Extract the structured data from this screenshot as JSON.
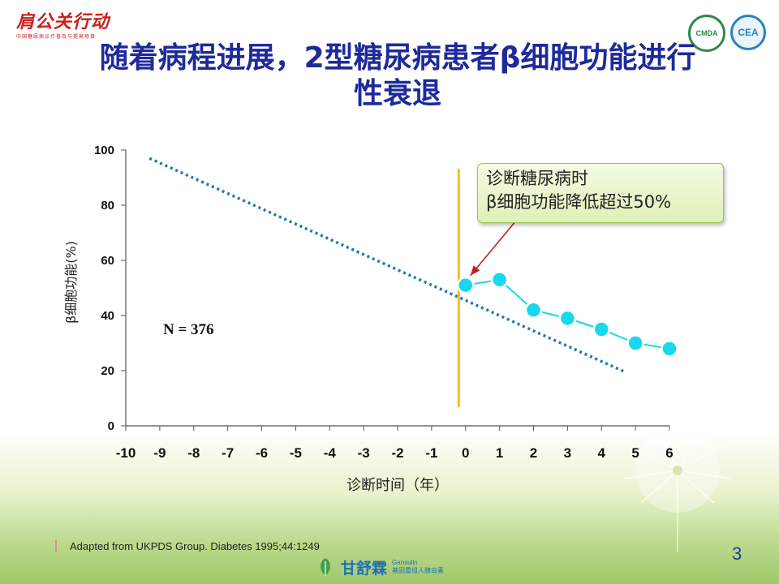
{
  "header": {
    "logo_text": "肩公关行动",
    "logo_tagline": "中国糖尿病诊疗普及与提高项目",
    "badge_left": "CMDA",
    "badge_right": "CEA"
  },
  "slide": {
    "title_line1": "随着病程进展，2型糖尿病患者β细胞功能进行",
    "title_line2": "性衰退",
    "callout_line1": "诊断糖尿病时",
    "callout_line2": "β细胞功能降低超过50%",
    "annotation": "N = 376",
    "reference": "Adapted from UKPDS Group. Diabetes 1995;44:1249",
    "page_number": "3",
    "brand_name": "甘舒霖",
    "brand_en": "Gansulin",
    "brand_sub": "基因重组人胰岛素"
  },
  "colors": {
    "title": "#1e2a9a",
    "trend_line": "#1f78b8",
    "data_line": "#17d8ec",
    "diagnosis_line": "#f2c21a",
    "arrow": "#c42020"
  },
  "chart_data": {
    "type": "line",
    "xlabel": "诊断时间（年）",
    "ylabel": "β细胞功能(%)",
    "xlim": [
      -10,
      6
    ],
    "ylim": [
      0,
      100
    ],
    "x_ticks": [
      "-10",
      "-9",
      "-8",
      "-7",
      "-6",
      "-5",
      "-4",
      "-3",
      "-2",
      "-1",
      "0",
      "1",
      "2",
      "3",
      "4",
      "5",
      "6"
    ],
    "y_ticks": [
      "0",
      "20",
      "40",
      "60",
      "80",
      "100"
    ],
    "grid": false,
    "series": [
      {
        "style": "dotted",
        "x": [
          -9.3,
          4.7
        ],
        "y": [
          97,
          19.5
        ]
      },
      {
        "style": "markers",
        "x": [
          0,
          1,
          2,
          3,
          4,
          5,
          6
        ],
        "y": [
          51,
          53,
          42,
          39,
          35,
          30,
          28
        ]
      }
    ],
    "vertical_line_x": -0.2
  }
}
